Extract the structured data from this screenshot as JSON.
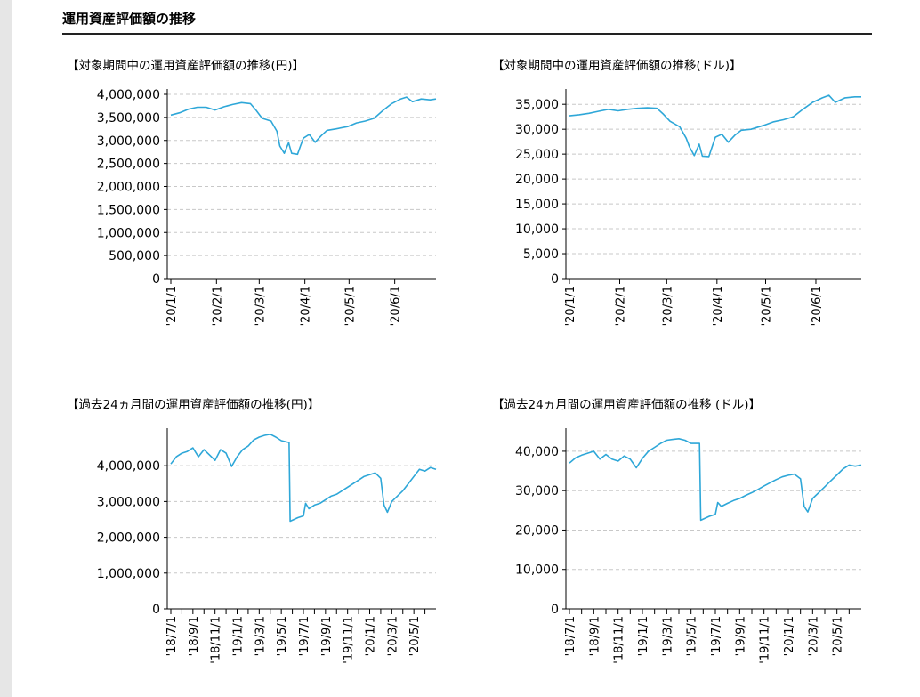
{
  "page": {
    "title": "運用資産評価額の推移"
  },
  "chart_data": [
    {
      "id": "c1",
      "type": "line",
      "title": "【対象期間中の運用資産評価額の推移(円)】",
      "ylim": [
        0,
        4000000
      ],
      "yticks": [
        0,
        500000,
        1000000,
        1500000,
        2000000,
        2500000,
        3000000,
        3500000,
        4000000
      ],
      "ytick_labels": [
        "0",
        "500,000",
        "1,000,000",
        "1,500,000",
        "2,000,000",
        "2,500,000",
        "3,000,000",
        "3,500,000",
        "4,000,000"
      ],
      "xlim": [
        0,
        180
      ],
      "xticks": [
        0,
        31,
        60,
        91,
        121,
        152
      ],
      "xtick_labels": [
        "'20/1/1",
        "'20/2/1",
        "'20/3/1",
        "'20/4/1",
        "'20/5/1",
        "'20/6/1"
      ],
      "grid": true,
      "color": "#2ea7d8",
      "series": [
        {
          "points": [
            [
              0,
              3550000
            ],
            [
              6,
              3600000
            ],
            [
              12,
              3680000
            ],
            [
              18,
              3720000
            ],
            [
              24,
              3720000
            ],
            [
              30,
              3660000
            ],
            [
              36,
              3730000
            ],
            [
              42,
              3780000
            ],
            [
              48,
              3820000
            ],
            [
              54,
              3800000
            ],
            [
              58,
              3650000
            ],
            [
              62,
              3480000
            ],
            [
              68,
              3420000
            ],
            [
              72,
              3200000
            ],
            [
              74,
              2880000
            ],
            [
              77,
              2720000
            ],
            [
              80,
              2950000
            ],
            [
              82,
              2720000
            ],
            [
              86,
              2700000
            ],
            [
              88,
              2880000
            ],
            [
              90,
              3050000
            ],
            [
              94,
              3130000
            ],
            [
              98,
              2960000
            ],
            [
              102,
              3100000
            ],
            [
              106,
              3220000
            ],
            [
              112,
              3250000
            ],
            [
              120,
              3300000
            ],
            [
              126,
              3380000
            ],
            [
              132,
              3420000
            ],
            [
              138,
              3480000
            ],
            [
              144,
              3650000
            ],
            [
              150,
              3800000
            ],
            [
              156,
              3900000
            ],
            [
              160,
              3940000
            ],
            [
              164,
              3840000
            ],
            [
              170,
              3900000
            ],
            [
              176,
              3880000
            ],
            [
              180,
              3900000
            ]
          ]
        }
      ]
    },
    {
      "id": "c2",
      "type": "line",
      "title": "【対象期間中の運用資産評価額の推移(ドル)】",
      "ylim": [
        0,
        37000
      ],
      "yticks": [
        0,
        5000,
        10000,
        15000,
        20000,
        25000,
        30000,
        35000
      ],
      "ytick_labels": [
        "0",
        "5,000",
        "10,000",
        "15,000",
        "20,000",
        "25,000",
        "30,000",
        "35,000"
      ],
      "xlim": [
        0,
        180
      ],
      "xticks": [
        0,
        31,
        60,
        91,
        121,
        152
      ],
      "xtick_labels": [
        "'20/1/1",
        "'20/2/1",
        "'20/3/1",
        "'20/4/1",
        "'20/5/1",
        "'20/6/1"
      ],
      "grid": true,
      "color": "#2ea7d8",
      "series": [
        {
          "points": [
            [
              0,
              32700
            ],
            [
              6,
              32900
            ],
            [
              12,
              33200
            ],
            [
              18,
              33600
            ],
            [
              24,
              34000
            ],
            [
              30,
              33700
            ],
            [
              36,
              34000
            ],
            [
              42,
              34200
            ],
            [
              48,
              34300
            ],
            [
              54,
              34200
            ],
            [
              58,
              33000
            ],
            [
              62,
              31600
            ],
            [
              68,
              30500
            ],
            [
              72,
              28200
            ],
            [
              74,
              26500
            ],
            [
              77,
              24700
            ],
            [
              80,
              27000
            ],
            [
              82,
              24600
            ],
            [
              86,
              24500
            ],
            [
              88,
              26500
            ],
            [
              90,
              28400
            ],
            [
              94,
              29000
            ],
            [
              98,
              27400
            ],
            [
              102,
              28800
            ],
            [
              106,
              29800
            ],
            [
              112,
              30000
            ],
            [
              120,
              30800
            ],
            [
              126,
              31500
            ],
            [
              132,
              31900
            ],
            [
              138,
              32500
            ],
            [
              144,
              34000
            ],
            [
              150,
              35400
            ],
            [
              156,
              36300
            ],
            [
              160,
              36800
            ],
            [
              164,
              35400
            ],
            [
              170,
              36300
            ],
            [
              176,
              36500
            ],
            [
              180,
              36500
            ]
          ]
        }
      ]
    },
    {
      "id": "c3",
      "type": "line",
      "title": "【過去24ヵ月間の運用資産評価額の推移(円)】",
      "ylim": [
        0,
        4900000
      ],
      "yticks": [
        0,
        1000000,
        2000000,
        3000000,
        4000000
      ],
      "ytick_labels": [
        "0",
        "1,000,000",
        "2,000,000",
        "3,000,000",
        "4,000,000"
      ],
      "xlim": [
        0,
        24
      ],
      "xticks": [
        0,
        1,
        2,
        3,
        4,
        5,
        6,
        7,
        8,
        9,
        10,
        11,
        12,
        13,
        14,
        15,
        16,
        17,
        18,
        19,
        20,
        21,
        22,
        23
      ],
      "xtick_labels": [
        "'18/7/1",
        "'18/9/1",
        "'18/11/1",
        "'19/1/1",
        "'19/3/1",
        "'19/5/1",
        "'19/7/1",
        "'19/9/1",
        "'19/11/1",
        "'20/1/1",
        "'20/3/1",
        "'20/5/1"
      ],
      "xtick_label_every": 2,
      "grid": true,
      "color": "#2ea7d8",
      "series": [
        {
          "points": [
            [
              0,
              4050000
            ],
            [
              0.5,
              4250000
            ],
            [
              1,
              4350000
            ],
            [
              1.5,
              4400000
            ],
            [
              2,
              4500000
            ],
            [
              2.5,
              4250000
            ],
            [
              3,
              4450000
            ],
            [
              3.5,
              4300000
            ],
            [
              4,
              4150000
            ],
            [
              4.5,
              4450000
            ],
            [
              5,
              4350000
            ],
            [
              5.5,
              3980000
            ],
            [
              6,
              4250000
            ],
            [
              6.5,
              4450000
            ],
            [
              7,
              4550000
            ],
            [
              7.5,
              4720000
            ],
            [
              8,
              4800000
            ],
            [
              8.5,
              4850000
            ],
            [
              9,
              4880000
            ],
            [
              9.5,
              4800000
            ],
            [
              10,
              4700000
            ],
            [
              10.7,
              4650000
            ],
            [
              10.8,
              2450000
            ],
            [
              11.5,
              2550000
            ],
            [
              12,
              2600000
            ],
            [
              12.2,
              2950000
            ],
            [
              12.5,
              2800000
            ],
            [
              13,
              2900000
            ],
            [
              13.5,
              2950000
            ],
            [
              14,
              3050000
            ],
            [
              14.5,
              3150000
            ],
            [
              15,
              3200000
            ],
            [
              15.5,
              3300000
            ],
            [
              16,
              3400000
            ],
            [
              16.5,
              3500000
            ],
            [
              17,
              3600000
            ],
            [
              17.5,
              3700000
            ],
            [
              18,
              3750000
            ],
            [
              18.5,
              3800000
            ],
            [
              19,
              3650000
            ],
            [
              19.3,
              2900000
            ],
            [
              19.6,
              2700000
            ],
            [
              20,
              3000000
            ],
            [
              20.5,
              3150000
            ],
            [
              21,
              3300000
            ],
            [
              21.5,
              3500000
            ],
            [
              22,
              3700000
            ],
            [
              22.5,
              3900000
            ],
            [
              23,
              3850000
            ],
            [
              23.5,
              3950000
            ],
            [
              24,
              3900000
            ]
          ]
        }
      ]
    },
    {
      "id": "c4",
      "type": "line",
      "title": "【過去24ヵ月間の運用資産評価額の推移 (ドル)】",
      "ylim": [
        0,
        44500
      ],
      "yticks": [
        0,
        10000,
        20000,
        30000,
        40000
      ],
      "ytick_labels": [
        "0",
        "10,000",
        "20,000",
        "30,000",
        "40,000"
      ],
      "xlim": [
        0,
        24
      ],
      "xticks": [
        0,
        1,
        2,
        3,
        4,
        5,
        6,
        7,
        8,
        9,
        10,
        11,
        12,
        13,
        14,
        15,
        16,
        17,
        18,
        19,
        20,
        21,
        22,
        23
      ],
      "xtick_labels": [
        "'18/7/1",
        "'18/9/1",
        "'18/11/1",
        "'19/1/1",
        "'19/3/1",
        "'19/5/1",
        "'19/7/1",
        "'19/9/1",
        "'19/11/1",
        "'20/1/1",
        "'20/3/1",
        "'20/5/1"
      ],
      "xtick_label_every": 2,
      "grid": true,
      "color": "#2ea7d8",
      "series": [
        {
          "points": [
            [
              0,
              37000
            ],
            [
              0.5,
              38300
            ],
            [
              1,
              39000
            ],
            [
              1.5,
              39500
            ],
            [
              2,
              40000
            ],
            [
              2.5,
              38000
            ],
            [
              3,
              39200
            ],
            [
              3.5,
              38000
            ],
            [
              4,
              37500
            ],
            [
              4.5,
              38800
            ],
            [
              5,
              38000
            ],
            [
              5.5,
              35800
            ],
            [
              6,
              38200
            ],
            [
              6.5,
              40000
            ],
            [
              7,
              41000
            ],
            [
              7.5,
              42000
            ],
            [
              8,
              42800
            ],
            [
              8.5,
              43000
            ],
            [
              9,
              43200
            ],
            [
              9.5,
              42800
            ],
            [
              10,
              42000
            ],
            [
              10.7,
              42000
            ],
            [
              10.8,
              22500
            ],
            [
              11.5,
              23500
            ],
            [
              12,
              24000
            ],
            [
              12.2,
              27000
            ],
            [
              12.5,
              26000
            ],
            [
              13,
              26800
            ],
            [
              13.5,
              27500
            ],
            [
              14,
              28000
            ],
            [
              14.5,
              28800
            ],
            [
              15,
              29500
            ],
            [
              15.5,
              30300
            ],
            [
              16,
              31200
            ],
            [
              16.5,
              32000
            ],
            [
              17,
              32800
            ],
            [
              17.5,
              33500
            ],
            [
              18,
              33900
            ],
            [
              18.5,
              34200
            ],
            [
              19,
              33000
            ],
            [
              19.3,
              26000
            ],
            [
              19.6,
              24600
            ],
            [
              20,
              28000
            ],
            [
              20.5,
              29500
            ],
            [
              21,
              31000
            ],
            [
              21.5,
              32500
            ],
            [
              22,
              34000
            ],
            [
              22.5,
              35500
            ],
            [
              23,
              36500
            ],
            [
              23.5,
              36200
            ],
            [
              24,
              36500
            ]
          ]
        }
      ]
    }
  ]
}
